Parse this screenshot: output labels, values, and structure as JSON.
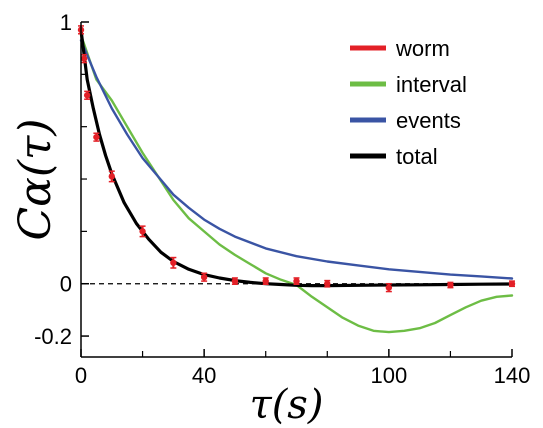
{
  "chart_data": {
    "type": "line",
    "xlabel": "τ(s)",
    "ylabel": "Cα(τ)",
    "xlim": [
      0,
      140
    ],
    "ylim": [
      -0.28,
      1.0
    ],
    "x_ticks": [
      {
        "value": 0,
        "label": "0"
      },
      {
        "value": 40,
        "label": "40"
      },
      {
        "value": 100,
        "label": "100"
      },
      {
        "value": 140,
        "label": "140"
      }
    ],
    "y_ticks": [
      {
        "value": 1,
        "label": "1"
      },
      {
        "value": 0,
        "label": "0"
      },
      {
        "value": -0.2,
        "label": "-0.2"
      }
    ],
    "grid": false,
    "zero_line": "dashed",
    "legend_position": "top-right",
    "series": [
      {
        "name": "worm",
        "color": "#e32027",
        "style": "points-errorbars",
        "x": [
          0,
          1,
          2,
          5,
          10,
          20,
          30,
          40,
          50,
          60,
          70,
          80,
          100,
          120,
          140
        ],
        "y": [
          0.97,
          0.86,
          0.72,
          0.56,
          0.41,
          0.2,
          0.08,
          0.025,
          0.01,
          0.01,
          0.01,
          0.0,
          -0.015,
          -0.005,
          0.0
        ],
        "err": [
          0.015,
          0.015,
          0.015,
          0.015,
          0.02,
          0.02,
          0.02,
          0.015,
          0.012,
          0.012,
          0.012,
          0.012,
          0.015,
          0.01,
          0.01
        ]
      },
      {
        "name": "interval",
        "color": "#6dbd45",
        "style": "line",
        "x": [
          0,
          5,
          10,
          15,
          20,
          25,
          30,
          35,
          40,
          45,
          50,
          55,
          60,
          65,
          70,
          75,
          80,
          85,
          90,
          95,
          100,
          105,
          110,
          115,
          120,
          125,
          130,
          135,
          140
        ],
        "y": [
          0.95,
          0.78,
          0.7,
          0.6,
          0.5,
          0.41,
          0.32,
          0.25,
          0.2,
          0.15,
          0.11,
          0.075,
          0.04,
          0.015,
          -0.005,
          -0.05,
          -0.09,
          -0.13,
          -0.16,
          -0.18,
          -0.185,
          -0.18,
          -0.17,
          -0.15,
          -0.12,
          -0.09,
          -0.065,
          -0.05,
          -0.045
        ]
      },
      {
        "name": "events",
        "color": "#3a54a4",
        "style": "line",
        "x": [
          0,
          5,
          10,
          15,
          20,
          25,
          30,
          35,
          40,
          45,
          50,
          60,
          70,
          80,
          90,
          100,
          110,
          120,
          130,
          140
        ],
        "y": [
          0.93,
          0.79,
          0.67,
          0.57,
          0.48,
          0.41,
          0.34,
          0.29,
          0.245,
          0.21,
          0.18,
          0.135,
          0.105,
          0.085,
          0.07,
          0.055,
          0.045,
          0.035,
          0.028,
          0.02
        ]
      },
      {
        "name": "total",
        "color": "#000000",
        "style": "line",
        "x": [
          0,
          2,
          4,
          6,
          8,
          10,
          14,
          18,
          22,
          26,
          30,
          35,
          40,
          45,
          50,
          55,
          60,
          65,
          70,
          75,
          80,
          90,
          100,
          110,
          120,
          130,
          140
        ],
        "y": [
          0.97,
          0.78,
          0.67,
          0.57,
          0.49,
          0.42,
          0.31,
          0.23,
          0.17,
          0.12,
          0.085,
          0.055,
          0.035,
          0.022,
          0.012,
          0.005,
          0.0,
          -0.003,
          -0.006,
          -0.007,
          -0.007,
          -0.006,
          -0.005,
          -0.004,
          -0.003,
          -0.002,
          -0.001
        ]
      }
    ]
  }
}
